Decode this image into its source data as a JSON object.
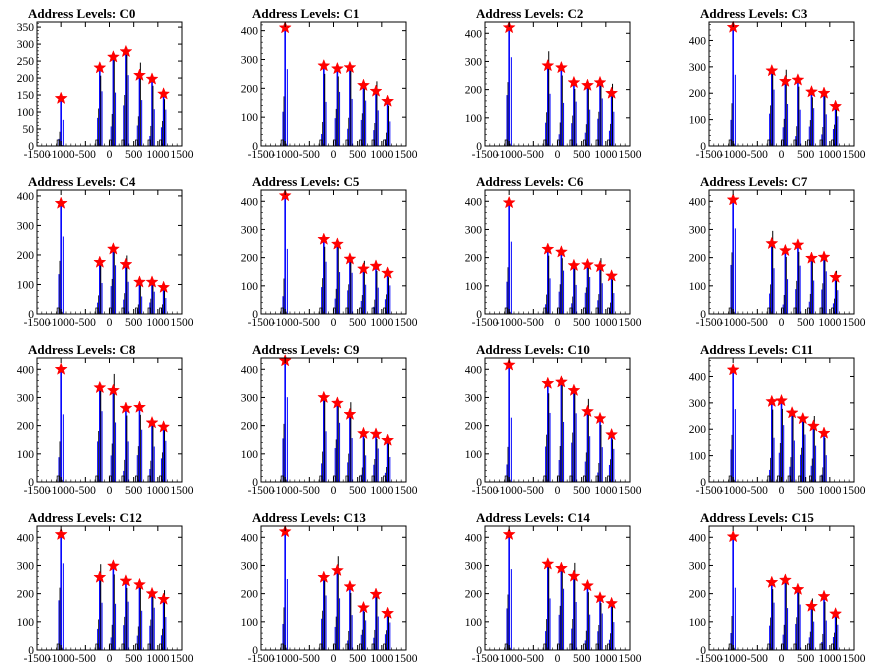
{
  "figure": {
    "colors": {
      "histogram": "#0000ff",
      "overlay": "#000000",
      "marker": "#ff0000",
      "frame": "#000000"
    },
    "x_ticks": [
      -1500,
      -1000,
      -500,
      0,
      500,
      1000,
      1500
    ],
    "xlim": [
      -1500,
      1500
    ]
  },
  "chart_data": [
    {
      "type": "bar",
      "title": "Address Levels: C0",
      "xlim": [
        -1500,
        1500
      ],
      "ylim": [
        0,
        365
      ],
      "yticks": [
        0,
        50,
        100,
        150,
        200,
        250,
        300,
        350
      ],
      "peaks": [
        {
          "x": -1000,
          "y": 140
        },
        {
          "x": -200,
          "y": 230
        },
        {
          "x": 80,
          "y": 262
        },
        {
          "x": 340,
          "y": 278
        },
        {
          "x": 620,
          "y": 208
        },
        {
          "x": 880,
          "y": 197
        },
        {
          "x": 1120,
          "y": 153
        }
      ]
    },
    {
      "type": "bar",
      "title": "Address Levels: C1",
      "xlim": [
        -1500,
        1500
      ],
      "ylim": [
        0,
        430
      ],
      "yticks": [
        0,
        100,
        200,
        300,
        400
      ],
      "peaks": [
        {
          "x": -1000,
          "y": 410
        },
        {
          "x": -200,
          "y": 278
        },
        {
          "x": 80,
          "y": 268
        },
        {
          "x": 340,
          "y": 272
        },
        {
          "x": 620,
          "y": 210
        },
        {
          "x": 880,
          "y": 190
        },
        {
          "x": 1120,
          "y": 155
        }
      ]
    },
    {
      "type": "bar",
      "title": "Address Levels: C2",
      "xlim": [
        -1500,
        1500
      ],
      "ylim": [
        0,
        440
      ],
      "yticks": [
        0,
        100,
        200,
        300,
        400
      ],
      "peaks": [
        {
          "x": -1000,
          "y": 420
        },
        {
          "x": -200,
          "y": 285
        },
        {
          "x": 80,
          "y": 278
        },
        {
          "x": 340,
          "y": 225
        },
        {
          "x": 620,
          "y": 215
        },
        {
          "x": 880,
          "y": 225
        },
        {
          "x": 1120,
          "y": 187
        }
      ]
    },
    {
      "type": "bar",
      "title": "Address Levels: C3",
      "xlim": [
        -1500,
        1500
      ],
      "ylim": [
        0,
        470
      ],
      "yticks": [
        0,
        100,
        200,
        300,
        400
      ],
      "peaks": [
        {
          "x": -1000,
          "y": 450
        },
        {
          "x": -200,
          "y": 285
        },
        {
          "x": 80,
          "y": 245
        },
        {
          "x": 340,
          "y": 250
        },
        {
          "x": 620,
          "y": 205
        },
        {
          "x": 880,
          "y": 200
        },
        {
          "x": 1120,
          "y": 150
        }
      ]
    },
    {
      "type": "bar",
      "title": "Address Levels: C4",
      "xlim": [
        -1500,
        1500
      ],
      "ylim": [
        0,
        420
      ],
      "yticks": [
        0,
        100,
        200,
        300,
        400
      ],
      "peaks": [
        {
          "x": -1000,
          "y": 375
        },
        {
          "x": -200,
          "y": 175
        },
        {
          "x": 80,
          "y": 220
        },
        {
          "x": 340,
          "y": 168
        },
        {
          "x": 620,
          "y": 108
        },
        {
          "x": 880,
          "y": 108
        },
        {
          "x": 1120,
          "y": 90
        }
      ]
    },
    {
      "type": "bar",
      "title": "Address Levels: C5",
      "xlim": [
        -1500,
        1500
      ],
      "ylim": [
        0,
        440
      ],
      "yticks": [
        0,
        100,
        200,
        300,
        400
      ],
      "peaks": [
        {
          "x": -1000,
          "y": 420
        },
        {
          "x": -200,
          "y": 265
        },
        {
          "x": 80,
          "y": 248
        },
        {
          "x": 340,
          "y": 195
        },
        {
          "x": 620,
          "y": 160
        },
        {
          "x": 880,
          "y": 170
        },
        {
          "x": 1120,
          "y": 145
        }
      ]
    },
    {
      "type": "bar",
      "title": "Address Levels: C6",
      "xlim": [
        -1500,
        1500
      ],
      "ylim": [
        0,
        440
      ],
      "yticks": [
        0,
        100,
        200,
        300,
        400
      ],
      "peaks": [
        {
          "x": -1000,
          "y": 395
        },
        {
          "x": -200,
          "y": 230
        },
        {
          "x": 80,
          "y": 220
        },
        {
          "x": 340,
          "y": 172
        },
        {
          "x": 620,
          "y": 175
        },
        {
          "x": 880,
          "y": 168
        },
        {
          "x": 1120,
          "y": 135
        }
      ]
    },
    {
      "type": "bar",
      "title": "Address Levels: C7",
      "xlim": [
        -1500,
        1500
      ],
      "ylim": [
        0,
        440
      ],
      "yticks": [
        0,
        100,
        200,
        300,
        400
      ],
      "peaks": [
        {
          "x": -1000,
          "y": 405
        },
        {
          "x": -200,
          "y": 250
        },
        {
          "x": 80,
          "y": 225
        },
        {
          "x": 340,
          "y": 245
        },
        {
          "x": 620,
          "y": 198
        },
        {
          "x": 880,
          "y": 202
        },
        {
          "x": 1120,
          "y": 130
        }
      ]
    },
    {
      "type": "bar",
      "title": "Address Levels: C8",
      "xlim": [
        -1500,
        1500
      ],
      "ylim": [
        0,
        440
      ],
      "yticks": [
        0,
        100,
        200,
        300,
        400
      ],
      "peaks": [
        {
          "x": -1000,
          "y": 400
        },
        {
          "x": -200,
          "y": 335
        },
        {
          "x": 80,
          "y": 325
        },
        {
          "x": 340,
          "y": 262
        },
        {
          "x": 620,
          "y": 265
        },
        {
          "x": 880,
          "y": 210
        },
        {
          "x": 1120,
          "y": 195
        }
      ]
    },
    {
      "type": "bar",
      "title": "Address Levels: C9",
      "xlim": [
        -1500,
        1500
      ],
      "ylim": [
        0,
        440
      ],
      "yticks": [
        0,
        100,
        200,
        300,
        400
      ],
      "peaks": [
        {
          "x": -1000,
          "y": 430
        },
        {
          "x": -200,
          "y": 300
        },
        {
          "x": 80,
          "y": 280
        },
        {
          "x": 340,
          "y": 240
        },
        {
          "x": 620,
          "y": 172
        },
        {
          "x": 880,
          "y": 170
        },
        {
          "x": 1120,
          "y": 148
        }
      ]
    },
    {
      "type": "bar",
      "title": "Address Levels: C10",
      "xlim": [
        -1500,
        1500
      ],
      "ylim": [
        0,
        440
      ],
      "yticks": [
        0,
        100,
        200,
        300,
        400
      ],
      "peaks": [
        {
          "x": -1000,
          "y": 415
        },
        {
          "x": -200,
          "y": 350
        },
        {
          "x": 80,
          "y": 355
        },
        {
          "x": 340,
          "y": 325
        },
        {
          "x": 620,
          "y": 250
        },
        {
          "x": 880,
          "y": 225
        },
        {
          "x": 1120,
          "y": 168
        }
      ]
    },
    {
      "type": "bar",
      "title": "Address Levels: C11",
      "xlim": [
        -1500,
        1500
      ],
      "ylim": [
        0,
        470
      ],
      "yticks": [
        0,
        100,
        200,
        300,
        400
      ],
      "peaks": [
        {
          "x": -1000,
          "y": 425
        },
        {
          "x": -200,
          "y": 305
        },
        {
          "x": 0,
          "y": 308
        },
        {
          "x": 220,
          "y": 262
        },
        {
          "x": 440,
          "y": 240
        },
        {
          "x": 660,
          "y": 212
        },
        {
          "x": 880,
          "y": 185
        }
      ]
    },
    {
      "type": "bar",
      "title": "Address Levels: C12",
      "xlim": [
        -1500,
        1500
      ],
      "ylim": [
        0,
        440
      ],
      "yticks": [
        0,
        100,
        200,
        300,
        400
      ],
      "peaks": [
        {
          "x": -1000,
          "y": 410
        },
        {
          "x": -200,
          "y": 258
        },
        {
          "x": 80,
          "y": 298
        },
        {
          "x": 340,
          "y": 245
        },
        {
          "x": 620,
          "y": 232
        },
        {
          "x": 880,
          "y": 200
        },
        {
          "x": 1120,
          "y": 180
        }
      ]
    },
    {
      "type": "bar",
      "title": "Address Levels: C13",
      "xlim": [
        -1500,
        1500
      ],
      "ylim": [
        0,
        440
      ],
      "yticks": [
        0,
        100,
        200,
        300,
        400
      ],
      "peaks": [
        {
          "x": -1000,
          "y": 420
        },
        {
          "x": -200,
          "y": 258
        },
        {
          "x": 80,
          "y": 282
        },
        {
          "x": 340,
          "y": 225
        },
        {
          "x": 620,
          "y": 150
        },
        {
          "x": 880,
          "y": 198
        },
        {
          "x": 1120,
          "y": 130
        }
      ]
    },
    {
      "type": "bar",
      "title": "Address Levels: C14",
      "xlim": [
        -1500,
        1500
      ],
      "ylim": [
        0,
        440
      ],
      "yticks": [
        0,
        100,
        200,
        300,
        400
      ],
      "peaks": [
        {
          "x": -1000,
          "y": 410
        },
        {
          "x": -200,
          "y": 305
        },
        {
          "x": 80,
          "y": 290
        },
        {
          "x": 340,
          "y": 262
        },
        {
          "x": 620,
          "y": 228
        },
        {
          "x": 880,
          "y": 185
        },
        {
          "x": 1120,
          "y": 165
        }
      ]
    },
    {
      "type": "bar",
      "title": "Address Levels: C15",
      "xlim": [
        -1500,
        1500
      ],
      "ylim": [
        0,
        440
      ],
      "yticks": [
        0,
        100,
        200,
        300,
        400
      ],
      "peaks": [
        {
          "x": -1000,
          "y": 402
        },
        {
          "x": -200,
          "y": 240
        },
        {
          "x": 80,
          "y": 248
        },
        {
          "x": 340,
          "y": 215
        },
        {
          "x": 620,
          "y": 155
        },
        {
          "x": 880,
          "y": 190
        },
        {
          "x": 1120,
          "y": 128
        }
      ]
    }
  ]
}
